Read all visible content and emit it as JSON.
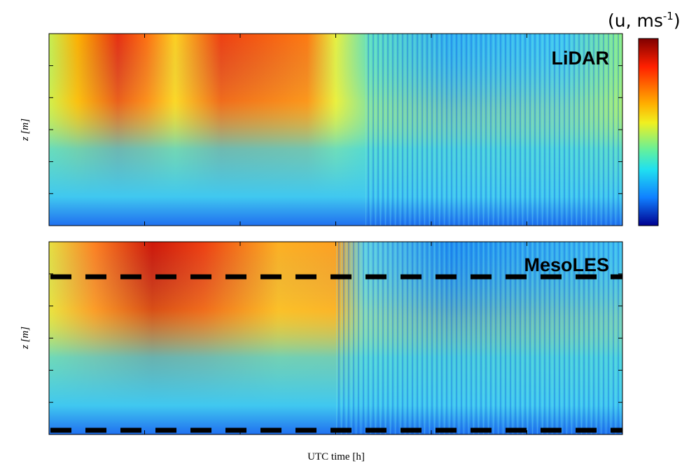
{
  "colorbar": {
    "label": "(u, ms",
    "superscript": "-1",
    "close": ")"
  },
  "panels": [
    {
      "label": "LiDAR",
      "ylabel": "z [m]"
    },
    {
      "label": "MesoLES",
      "ylabel": "z [m]"
    }
  ],
  "xlabel": "UTC time [h]"
}
